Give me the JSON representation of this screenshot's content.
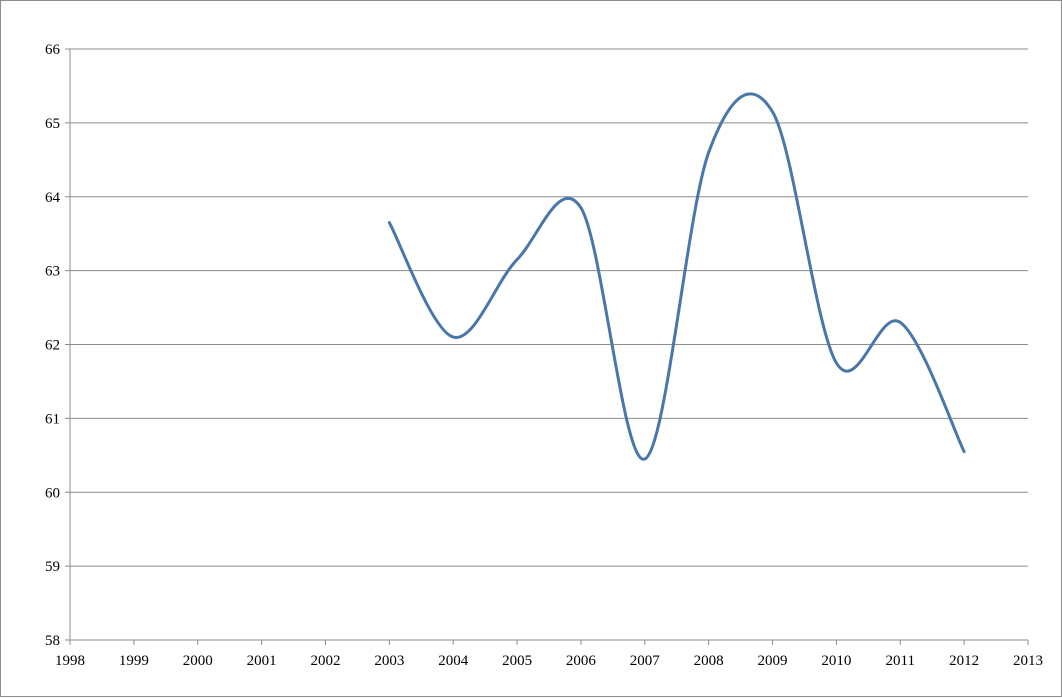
{
  "chart_data": {
    "type": "line",
    "title": "",
    "xlabel": "",
    "ylabel": "",
    "xlim": [
      1998,
      2013
    ],
    "ylim": [
      58,
      66
    ],
    "x_ticks": [
      "1998",
      "1999",
      "2000",
      "2001",
      "2002",
      "2003",
      "2004",
      "2005",
      "2006",
      "2007",
      "2008",
      "2009",
      "2010",
      "2011",
      "2012",
      "2013"
    ],
    "y_ticks": [
      "58",
      "59",
      "60",
      "61",
      "62",
      "63",
      "64",
      "65",
      "66"
    ],
    "grid": "horizontal",
    "legend": "none",
    "smooth": true,
    "series": [
      {
        "color": "#4a76aa",
        "points": [
          [
            2003,
            63.65
          ],
          [
            2004,
            62.1
          ],
          [
            2005,
            63.15
          ],
          [
            2006,
            63.85
          ],
          [
            2007,
            60.45
          ],
          [
            2008,
            64.6
          ],
          [
            2009,
            65.15
          ],
          [
            2010,
            61.75
          ],
          [
            2011,
            62.3
          ],
          [
            2012,
            60.55
          ]
        ]
      }
    ]
  }
}
